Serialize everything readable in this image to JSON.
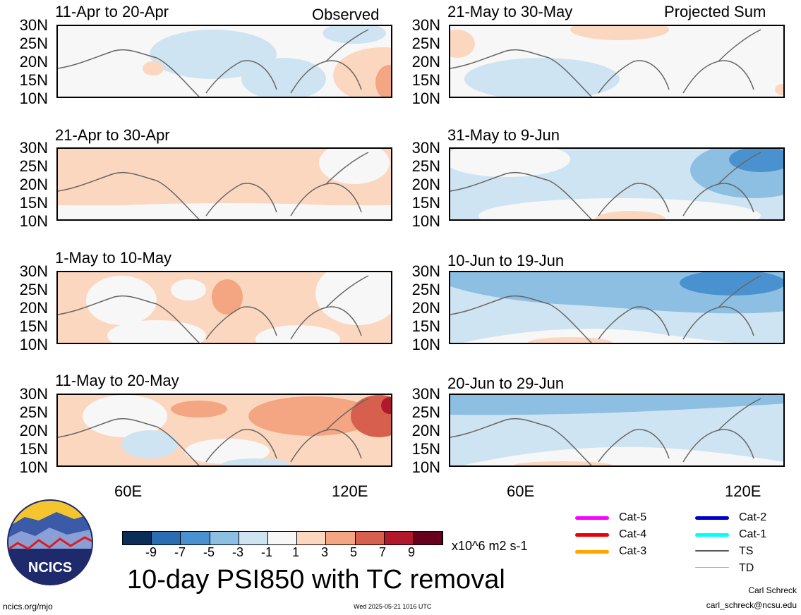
{
  "header": {
    "left_tag": "Observed",
    "right_tag": "Projected Sum"
  },
  "lat_labels": [
    "30N",
    "25N",
    "20N",
    "15N",
    "10N"
  ],
  "lon_labels": [
    "60E",
    "120E"
  ],
  "panels": {
    "left": [
      {
        "title": "11-Apr to 20-Apr"
      },
      {
        "title": "21-Apr to 30-Apr"
      },
      {
        "title": "1-May to 10-May"
      },
      {
        "title": "11-May to 20-May"
      }
    ],
    "right": [
      {
        "title": "21-May to 30-May"
      },
      {
        "title": "31-May to 9-Jun"
      },
      {
        "title": "10-Jun to 19-Jun"
      },
      {
        "title": "20-Jun to 29-Jun"
      }
    ]
  },
  "colorbar": {
    "labels": [
      "-9",
      "-7",
      "-5",
      "-3",
      "-1",
      "1",
      "3",
      "5",
      "7",
      "9"
    ],
    "colors": [
      "#0b2e59",
      "#2a6db3",
      "#4a92cf",
      "#8dbfe3",
      "#cfe4f2",
      "#f7f7f7",
      "#fcd7c0",
      "#f4a582",
      "#d6604d",
      "#b2182b",
      "#67001f"
    ],
    "units": "x10^6 m2 s-1"
  },
  "legend": {
    "items": [
      {
        "label": "Cat-5",
        "color": "#ff00ff"
      },
      {
        "label": "Cat-4",
        "color": "#ee0000"
      },
      {
        "label": "Cat-3",
        "color": "#ffa500"
      },
      {
        "label": "Cat-2",
        "color": "#0000cc"
      },
      {
        "label": "Cat-1",
        "color": "#00ffff"
      },
      {
        "label": "TS",
        "color": "#555555"
      },
      {
        "label": "TD",
        "color": "#aaaaaa"
      }
    ]
  },
  "logo": {
    "text": "NCICS"
  },
  "title": "10-day PSI850 with TC removal",
  "footer": {
    "url": "ncics.org/mjo",
    "timestamp": "Wed 2025-05-21 1016 UTC",
    "author": "Carl Schreck",
    "email": "carl_schreck@ncsu.edu"
  }
}
